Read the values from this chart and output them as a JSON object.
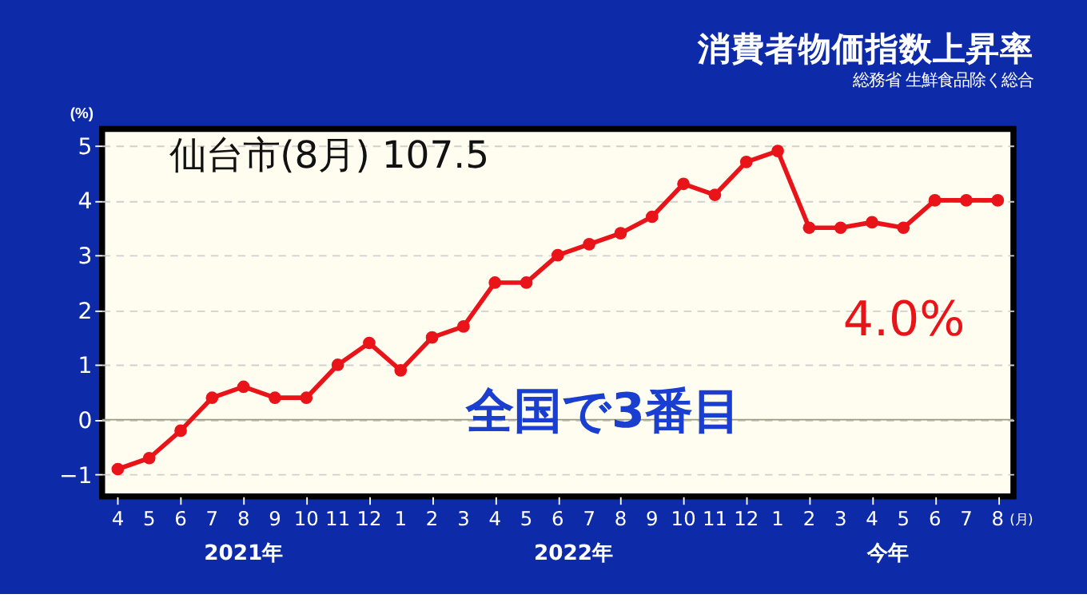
{
  "chart_data": {
    "type": "line",
    "title": "消費者物価指数上昇率",
    "subtitle": "総務省 生鮮食品除く総合",
    "ylabel": "(%)",
    "xlabel": "(月)",
    "categories": [
      "4",
      "5",
      "6",
      "7",
      "8",
      "9",
      "10",
      "11",
      "12",
      "1",
      "2",
      "3",
      "4",
      "5",
      "6",
      "7",
      "8",
      "9",
      "10",
      "11",
      "12",
      "1",
      "2",
      "3",
      "4",
      "5",
      "6",
      "7",
      "8"
    ],
    "series": [
      {
        "color": "#e8141a",
        "values": [
          -0.9,
          -0.7,
          -0.2,
          0.4,
          0.6,
          0.4,
          0.4,
          1.0,
          1.4,
          0.9,
          1.5,
          1.7,
          2.5,
          2.5,
          3.0,
          3.2,
          3.4,
          3.7,
          4.3,
          4.1,
          4.7,
          4.9,
          3.5,
          3.5,
          3.6,
          3.5,
          4.0,
          4.0,
          4.0
        ]
      }
    ],
    "ylim": [
      -1.4,
      5.3
    ],
    "yticks": [
      -1,
      0,
      1,
      2,
      3,
      4,
      5
    ],
    "grid": "y",
    "marker": "circle",
    "line_style": "solid",
    "ref_lines": [
      {
        "axis": "y",
        "value": 0,
        "color": "#9a9a80"
      }
    ],
    "annotations": [
      "仙台市(8月) 107.5",
      "全国で3番目",
      "4.0%",
      "2021年",
      "2022年",
      "今年"
    ]
  }
}
